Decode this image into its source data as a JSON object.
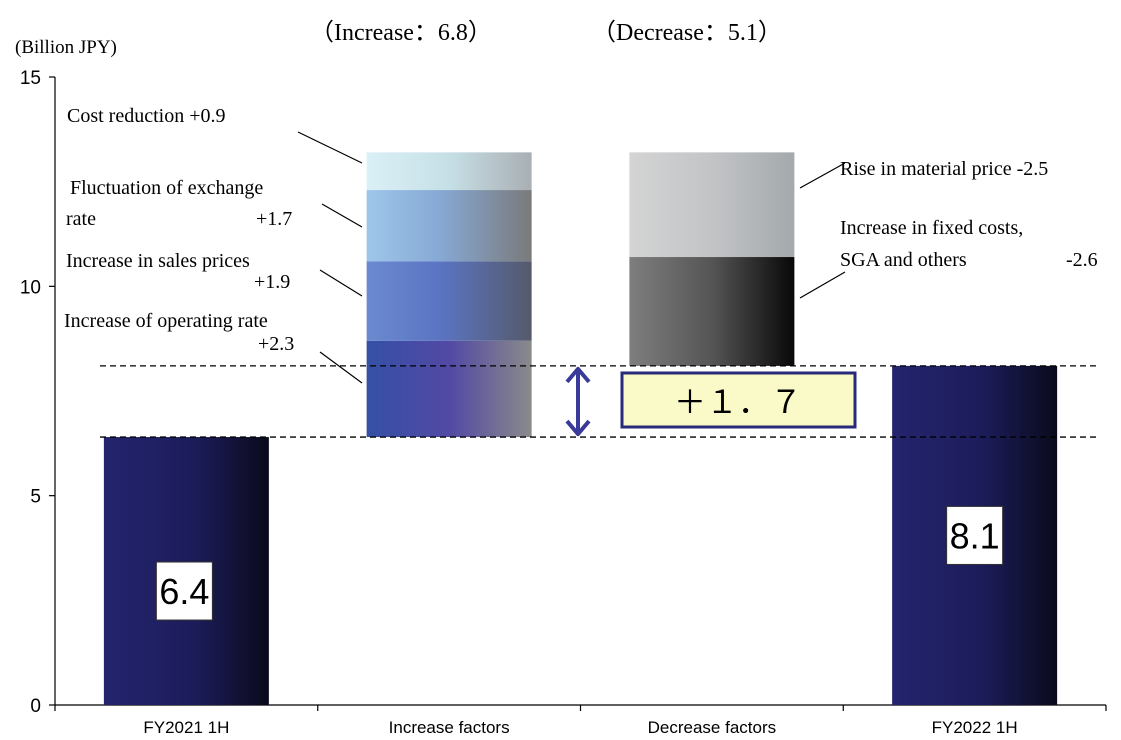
{
  "chart_data": {
    "type": "bar",
    "subtype": "waterfall",
    "unit_label": "(Billion JPY)",
    "ylim": [
      0,
      15
    ],
    "yticks": [
      "0",
      "5",
      "10",
      "15"
    ],
    "categories": [
      "FY2021 1H",
      "Increase factors",
      "Decrease factors",
      "FY2022 1H"
    ],
    "start": {
      "category": "FY2021 1H",
      "value": 6.4,
      "label": "6.4"
    },
    "end": {
      "category": "FY2022 1H",
      "value": 8.1,
      "label": "8.1"
    },
    "increase_header": "（Increase：6.8）",
    "decrease_header": "（Decrease：5.1）",
    "increase_factors": [
      {
        "line1": "Increase of operating rate",
        "line2": "+2.3",
        "value": 2.3,
        "color": "#3a52a8"
      },
      {
        "line1": "Increase in sales prices",
        "line2": "+1.9",
        "value": 1.9,
        "color": "#6b8bd0"
      },
      {
        "line1": "Fluctuation of exchange",
        "line2": "rate +1.7",
        "value": 1.7,
        "color": "#9ec5e8"
      },
      {
        "line1": "Cost  reduction  +0.9",
        "line2": "",
        "value": 0.9,
        "color": "#d6eef5"
      }
    ],
    "decrease_factors": [
      {
        "line1": "Increase in fixed costs,",
        "line2": "SGA and others",
        "value_label": "-2.6",
        "value": 2.6,
        "color": "#7a7a7a"
      },
      {
        "line1": "Rise in material price  -2.5",
        "line2": "",
        "value_label": "",
        "value": 2.5,
        "color": "#cfcfcf"
      }
    ],
    "net_change_label": "＋１．７",
    "colors": {
      "total_bar": "#23236b",
      "arrow": "#3a3a9a",
      "net_box_fill": "#fafac8"
    }
  }
}
